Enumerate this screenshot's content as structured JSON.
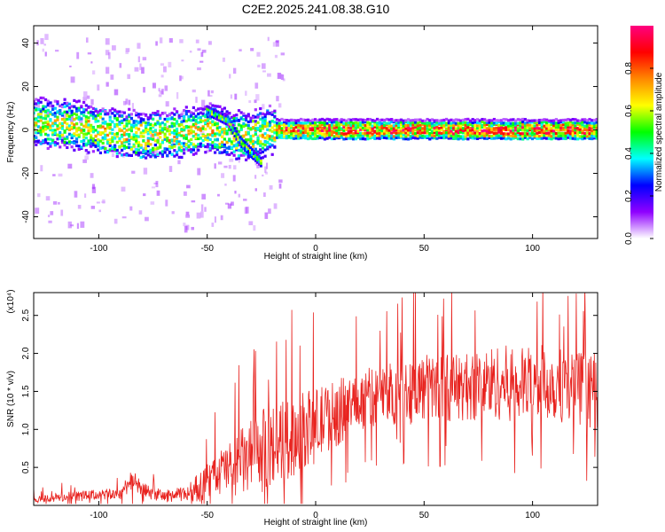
{
  "figure": {
    "title": "C2E2.2025.241.08.38.G10"
  },
  "chart_data": [
    {
      "type": "heatmap",
      "title": "C2E2.2025.241.08.38.G10",
      "xlabel": "Height of straight line (km)",
      "ylabel": "Frequency (Hz)",
      "xlim": [
        -130,
        130
      ],
      "ylim": [
        -50,
        48
      ],
      "xticks": [
        -100,
        -50,
        0,
        50,
        100
      ],
      "yticks": [
        -40,
        -20,
        0,
        20,
        40
      ],
      "colorbar": {
        "label": "Normalized spectral amplitude",
        "range": [
          0,
          1
        ],
        "ticks": [
          0.0,
          0.2,
          0.4,
          0.6,
          0.8
        ],
        "colormap": [
          "#ffffff",
          "#8f00ff",
          "#0000ff",
          "#00ffff",
          "#00ff00",
          "#ffff00",
          "#ff8800",
          "#ff0000",
          "#ff0080"
        ]
      },
      "band_center_hz": [
        {
          "x": -125,
          "y": 3
        },
        {
          "x": -110,
          "y": 2
        },
        {
          "x": -95,
          "y": -1
        },
        {
          "x": -80,
          "y": -3
        },
        {
          "x": -65,
          "y": -2
        },
        {
          "x": -50,
          "y": 1
        },
        {
          "x": -40,
          "y": -2
        },
        {
          "x": -30,
          "y": -3
        },
        {
          "x": -20,
          "y": 0
        },
        {
          "x": 0,
          "y": 0
        },
        {
          "x": 50,
          "y": 0
        },
        {
          "x": 100,
          "y": 0
        },
        {
          "x": 130,
          "y": 0
        }
      ],
      "secondary_track_hz": [
        {
          "x": -50,
          "y": 9
        },
        {
          "x": -40,
          "y": 4
        },
        {
          "x": -35,
          "y": -5
        },
        {
          "x": -30,
          "y": -10
        },
        {
          "x": -25,
          "y": -15
        }
      ]
    },
    {
      "type": "line",
      "xlabel": "Height of straight line (km)",
      "ylabel": "SNR (10 * v/v)",
      "y_multiplier": "(x10⁴)",
      "xlim": [
        -130,
        130
      ],
      "ylim": [
        0,
        2.8
      ],
      "xticks": [
        -100,
        -50,
        0,
        50,
        100
      ],
      "yticks": [
        0.5,
        1.0,
        1.5,
        2.0,
        2.5
      ],
      "color": "#e8231f",
      "series": [
        {
          "x": [
            -130,
            -120,
            -110,
            -100,
            -90,
            -85,
            -80,
            -70,
            -60,
            -50,
            -45,
            -40,
            -35,
            -30,
            -25,
            -20,
            -15,
            -10,
            -5,
            0,
            5,
            10,
            15,
            20,
            25,
            30,
            35,
            40,
            45,
            50,
            55,
            60,
            65,
            70,
            75,
            80,
            85,
            90,
            95,
            100,
            105,
            110,
            115,
            120,
            125,
            130
          ],
          "y": [
            0.08,
            0.1,
            0.12,
            0.14,
            0.15,
            0.35,
            0.2,
            0.12,
            0.15,
            0.3,
            0.42,
            0.5,
            0.55,
            0.62,
            0.7,
            0.8,
            0.85,
            0.9,
            1.0,
            1.05,
            1.15,
            1.22,
            1.3,
            1.38,
            1.42,
            1.45,
            1.48,
            1.5,
            1.52,
            1.55,
            1.55,
            1.56,
            1.55,
            1.56,
            1.58,
            1.6,
            1.62,
            1.6,
            1.58,
            1.6,
            1.62,
            1.6,
            1.58,
            1.55,
            1.52,
            1.5
          ],
          "spread": [
            0.05,
            0.06,
            0.07,
            0.07,
            0.08,
            0.15,
            0.1,
            0.08,
            0.1,
            0.25,
            0.3,
            0.35,
            0.45,
            0.5,
            0.55,
            0.55,
            0.55,
            0.55,
            0.5,
            0.5,
            0.45,
            0.45,
            0.4,
            0.4,
            0.4,
            0.4,
            0.42,
            0.45,
            0.45,
            0.45,
            0.45,
            0.45,
            0.45,
            0.45,
            0.48,
            0.5,
            0.5,
            0.5,
            0.5,
            0.5,
            0.5,
            0.5,
            0.5,
            0.5,
            0.5,
            0.5
          ]
        }
      ]
    }
  ]
}
